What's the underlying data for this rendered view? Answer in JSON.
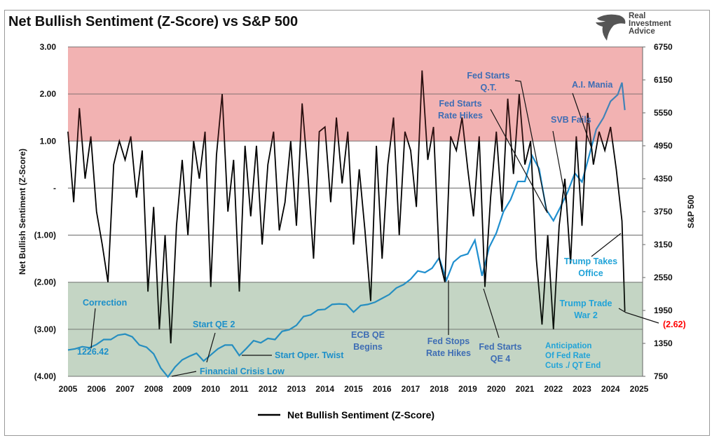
{
  "header": {
    "title": "Net Bullish Sentiment (Z-Score) vs S&P 500"
  },
  "logo": {
    "text": [
      "Real",
      "Investment",
      "Advice"
    ]
  },
  "colors": {
    "sentiment": "#000000",
    "sp500": "#1f8fcf",
    "bullish_zone": "#f6c9c9",
    "bearish_zone": "#d3e0d3",
    "last_value": "#ff0000"
  },
  "chart_data": {
    "type": "line",
    "title": "Net Bullish Sentiment (Z-Score) vs S&P 500",
    "ylabel": "Net Bullish Sentiment (Z-Score)",
    "y2label": "S&P 500",
    "xlim": [
      2005,
      2025
    ],
    "ylim": [
      -4,
      3
    ],
    "y2lim": [
      750,
      6750
    ],
    "x_ticks": [
      "2005",
      "2006",
      "2007",
      "2008",
      "2009",
      "2010",
      "2011",
      "2012",
      "2013",
      "2014",
      "2015",
      "2016",
      "2017",
      "2018",
      "2019",
      "2020",
      "2021",
      "2022",
      "2023",
      "2024",
      "2025"
    ],
    "y_ticks": [
      "3.00",
      "2.00",
      "1.00",
      "-",
      "(1.00)",
      "(2.00)",
      "(3.00)",
      "(4.00)"
    ],
    "y2_ticks": [
      "6750",
      "6150",
      "5550",
      "4950",
      "4350",
      "3750",
      "3150",
      "2550",
      "1950",
      "1350",
      "750"
    ],
    "zones": [
      {
        "from": 1,
        "to": 3,
        "color": "#f6c9c9"
      },
      {
        "from": -4,
        "to": -2,
        "color": "#d3e0d3"
      }
    ],
    "legend": {
      "position": "bottom",
      "entries": [
        "Net Bullish Sentiment (Z-Score)"
      ]
    },
    "last_value_label": "(2.62)",
    "series": [
      {
        "name": "Net Bullish Sentiment (Z-Score)",
        "axis": "left",
        "points": [
          [
            2005.0,
            1.2
          ],
          [
            2005.2,
            -0.3
          ],
          [
            2005.4,
            1.7
          ],
          [
            2005.6,
            0.2
          ],
          [
            2005.8,
            1.1
          ],
          [
            2006.0,
            -0.5
          ],
          [
            2006.2,
            -1.2
          ],
          [
            2006.4,
            -2.0
          ],
          [
            2006.6,
            0.5
          ],
          [
            2006.8,
            1.0
          ],
          [
            2007.0,
            0.6
          ],
          [
            2007.2,
            1.1
          ],
          [
            2007.4,
            -0.2
          ],
          [
            2007.6,
            0.8
          ],
          [
            2007.8,
            -2.2
          ],
          [
            2008.0,
            -0.4
          ],
          [
            2008.2,
            -3.0
          ],
          [
            2008.4,
            -1.0
          ],
          [
            2008.6,
            -3.3
          ],
          [
            2008.8,
            -0.8
          ],
          [
            2009.0,
            0.6
          ],
          [
            2009.2,
            -1.0
          ],
          [
            2009.4,
            1.0
          ],
          [
            2009.6,
            0.2
          ],
          [
            2009.8,
            1.2
          ],
          [
            2010.0,
            -2.1
          ],
          [
            2010.2,
            0.7
          ],
          [
            2010.4,
            2.0
          ],
          [
            2010.6,
            -0.5
          ],
          [
            2010.8,
            0.6
          ],
          [
            2011.0,
            -2.2
          ],
          [
            2011.2,
            0.9
          ],
          [
            2011.4,
            -0.6
          ],
          [
            2011.6,
            0.9
          ],
          [
            2011.8,
            -1.2
          ],
          [
            2012.0,
            0.5
          ],
          [
            2012.2,
            1.2
          ],
          [
            2012.4,
            -0.9
          ],
          [
            2012.6,
            -0.3
          ],
          [
            2012.8,
            1.0
          ],
          [
            2013.0,
            -0.8
          ],
          [
            2013.2,
            1.8
          ],
          [
            2013.4,
            0.3
          ],
          [
            2013.6,
            -1.5
          ],
          [
            2013.8,
            1.2
          ],
          [
            2014.0,
            1.3
          ],
          [
            2014.2,
            -0.3
          ],
          [
            2014.4,
            1.5
          ],
          [
            2014.6,
            0.1
          ],
          [
            2014.8,
            1.2
          ],
          [
            2015.0,
            -1.2
          ],
          [
            2015.2,
            0.4
          ],
          [
            2015.4,
            -0.9
          ],
          [
            2015.6,
            -2.4
          ],
          [
            2015.8,
            0.9
          ],
          [
            2016.0,
            -1.5
          ],
          [
            2016.2,
            0.5
          ],
          [
            2016.4,
            1.5
          ],
          [
            2016.6,
            -1.0
          ],
          [
            2016.8,
            1.2
          ],
          [
            2017.0,
            0.8
          ],
          [
            2017.2,
            -0.4
          ],
          [
            2017.4,
            2.5
          ],
          [
            2017.6,
            0.6
          ],
          [
            2017.8,
            1.3
          ],
          [
            2018.0,
            -1.5
          ],
          [
            2018.2,
            -2.0
          ],
          [
            2018.4,
            1.1
          ],
          [
            2018.6,
            0.8
          ],
          [
            2018.8,
            1.5
          ],
          [
            2019.0,
            0.4
          ],
          [
            2019.2,
            -0.6
          ],
          [
            2019.4,
            1.1
          ],
          [
            2019.6,
            -2.1
          ],
          [
            2019.8,
            -0.2
          ],
          [
            2020.0,
            1.2
          ],
          [
            2020.2,
            -0.5
          ],
          [
            2020.4,
            1.9
          ],
          [
            2020.6,
            0.3
          ],
          [
            2020.8,
            2.0
          ],
          [
            2021.0,
            0.5
          ],
          [
            2021.2,
            1.0
          ],
          [
            2021.4,
            -1.5
          ],
          [
            2021.6,
            -2.9
          ],
          [
            2021.8,
            -1.0
          ],
          [
            2022.0,
            -3.0
          ],
          [
            2022.2,
            -0.8
          ],
          [
            2022.4,
            0.2
          ],
          [
            2022.6,
            -1.6
          ],
          [
            2022.8,
            1.1
          ],
          [
            2023.0,
            -0.8
          ],
          [
            2023.2,
            1.6
          ],
          [
            2023.4,
            0.5
          ],
          [
            2023.6,
            1.2
          ],
          [
            2023.8,
            0.8
          ],
          [
            2024.0,
            1.3
          ],
          [
            2024.2,
            0.4
          ],
          [
            2024.4,
            -0.7
          ],
          [
            2024.5,
            -2.62
          ]
        ]
      },
      {
        "name": "S&P 500",
        "axis": "right",
        "points": [
          [
            2005.0,
            1230
          ],
          [
            2005.25,
            1250
          ],
          [
            2005.5,
            1290
          ],
          [
            2005.75,
            1270
          ],
          [
            2006.0,
            1330
          ],
          [
            2006.25,
            1420
          ],
          [
            2006.5,
            1420
          ],
          [
            2006.75,
            1500
          ],
          [
            2007.0,
            1520
          ],
          [
            2007.25,
            1470
          ],
          [
            2007.5,
            1320
          ],
          [
            2007.75,
            1280
          ],
          [
            2008.0,
            1160
          ],
          [
            2008.25,
            900
          ],
          [
            2008.5,
            740
          ],
          [
            2008.75,
            920
          ],
          [
            2009.0,
            1050
          ],
          [
            2009.25,
            1115
          ],
          [
            2009.5,
            1170
          ],
          [
            2009.75,
            1030
          ],
          [
            2010.0,
            1140
          ],
          [
            2010.25,
            1250
          ],
          [
            2010.5,
            1320
          ],
          [
            2010.75,
            1320
          ],
          [
            2011.0,
            1130
          ],
          [
            2011.25,
            1260
          ],
          [
            2011.5,
            1400
          ],
          [
            2011.75,
            1360
          ],
          [
            2012.0,
            1440
          ],
          [
            2012.25,
            1420
          ],
          [
            2012.5,
            1570
          ],
          [
            2012.75,
            1600
          ],
          [
            2013.0,
            1680
          ],
          [
            2013.25,
            1840
          ],
          [
            2013.5,
            1870
          ],
          [
            2013.75,
            1960
          ],
          [
            2014.0,
            1970
          ],
          [
            2014.25,
            2060
          ],
          [
            2014.5,
            2070
          ],
          [
            2014.75,
            2060
          ],
          [
            2015.0,
            1920
          ],
          [
            2015.25,
            2040
          ],
          [
            2015.5,
            2060
          ],
          [
            2015.75,
            2100
          ],
          [
            2016.0,
            2170
          ],
          [
            2016.25,
            2240
          ],
          [
            2016.5,
            2360
          ],
          [
            2016.75,
            2420
          ],
          [
            2017.0,
            2520
          ],
          [
            2017.25,
            2670
          ],
          [
            2017.5,
            2640
          ],
          [
            2017.75,
            2720
          ],
          [
            2018.0,
            2910
          ],
          [
            2018.25,
            2500
          ],
          [
            2018.5,
            2830
          ],
          [
            2018.75,
            2940
          ],
          [
            2019.0,
            2980
          ],
          [
            2019.25,
            3230
          ],
          [
            2019.5,
            2580
          ],
          [
            2019.75,
            3100
          ],
          [
            2020.0,
            3360
          ],
          [
            2020.25,
            3750
          ],
          [
            2020.5,
            3970
          ],
          [
            2020.75,
            4300
          ],
          [
            2021.0,
            4300
          ],
          [
            2021.25,
            4770
          ],
          [
            2021.5,
            4530
          ],
          [
            2021.75,
            3785
          ],
          [
            2022.0,
            3585
          ],
          [
            2022.25,
            3840
          ],
          [
            2022.5,
            4110
          ],
          [
            2022.75,
            4450
          ],
          [
            2023.0,
            4290
          ],
          [
            2023.25,
            4770
          ],
          [
            2023.5,
            5250
          ],
          [
            2023.75,
            5460
          ],
          [
            2024.0,
            5760
          ],
          [
            2024.25,
            5880
          ],
          [
            2024.4,
            6100
          ],
          [
            2024.5,
            5600
          ]
        ]
      }
    ],
    "annotations": [
      {
        "text": [
          "Correction"
        ]
      },
      {
        "text": [
          "1226.42"
        ]
      },
      {
        "text": [
          "Start QE 2"
        ]
      },
      {
        "text": [
          "Start Oper. Twist"
        ]
      },
      {
        "text": [
          "Financial Crisis Low"
        ]
      },
      {
        "text": [
          "ECB QE",
          "Begins"
        ]
      },
      {
        "text": [
          "Fed Stops",
          "Rate Hikes"
        ]
      },
      {
        "text": [
          "Fed Starts",
          "QE 4"
        ]
      },
      {
        "text": [
          "Anticipation",
          "Of Fed Rate",
          "Cuts ./ QT End"
        ]
      },
      {
        "text": [
          "Trump Trade",
          "War 2"
        ]
      },
      {
        "text": [
          "Trump Takes",
          "Office"
        ]
      },
      {
        "text": [
          "Fed Starts",
          "Q.T."
        ]
      },
      {
        "text": [
          "Fed Starts",
          "Rate Hikes"
        ]
      },
      {
        "text": [
          "SVB Fails"
        ]
      },
      {
        "text": [
          "A.I. Mania"
        ]
      }
    ]
  }
}
